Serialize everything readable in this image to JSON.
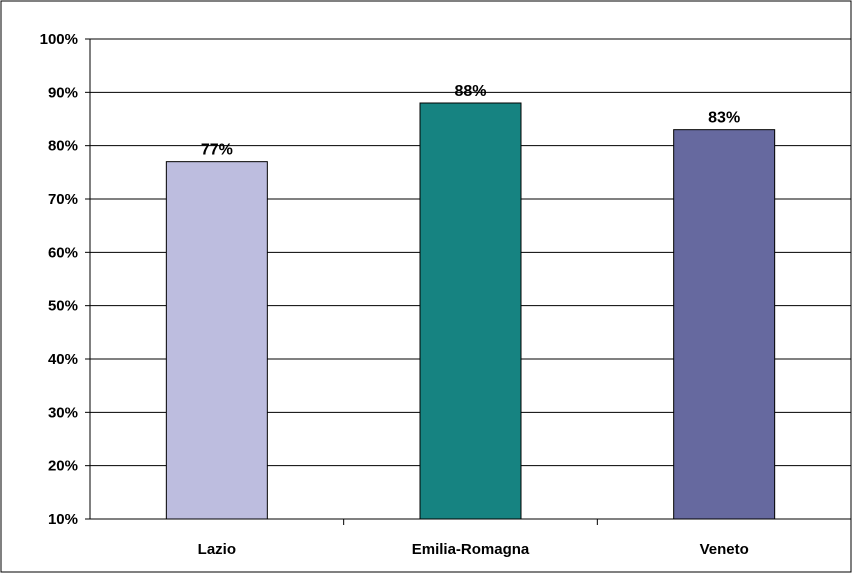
{
  "chart_data": {
    "type": "bar",
    "categories": [
      "Lazio",
      "Emilia-Romagna",
      "Veneto"
    ],
    "values": [
      77,
      88,
      83
    ],
    "value_labels": [
      "77%",
      "88%",
      "83%"
    ],
    "ylim": [
      10,
      100
    ],
    "yticks": [
      10,
      20,
      30,
      40,
      50,
      60,
      70,
      80,
      90,
      100
    ],
    "ytick_labels": [
      "10%",
      "20%",
      "30%",
      "40%",
      "50%",
      "60%",
      "70%",
      "80%",
      "90%",
      "100%"
    ],
    "grid": true,
    "legend": "none",
    "bar_colors": [
      "#bdbddf",
      "#168381",
      "#66699f"
    ],
    "title": "",
    "xlabel": "",
    "ylabel": ""
  }
}
